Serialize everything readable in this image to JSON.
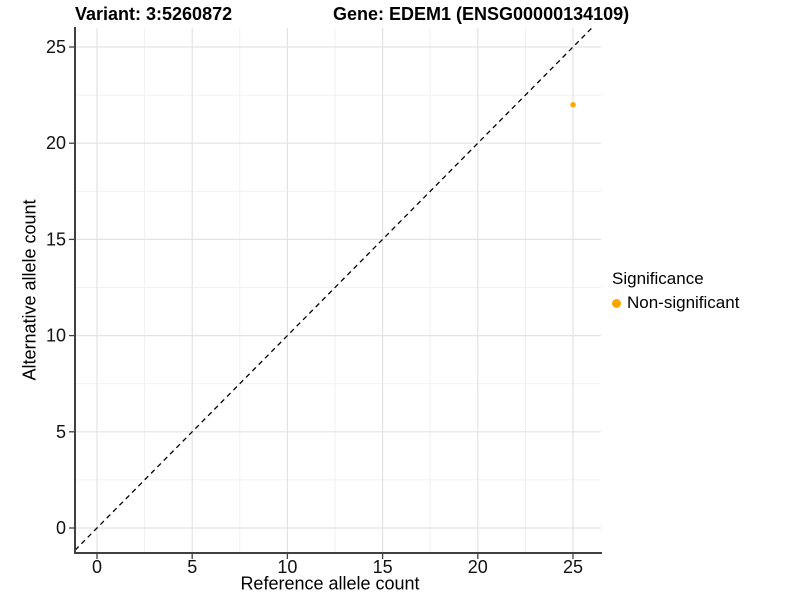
{
  "title": {
    "variant": "Variant: 3:5260872",
    "gene": "Gene: EDEM1 (ENSG00000134109)"
  },
  "axes": {
    "x": {
      "label": "Reference allele count",
      "ticks": [
        0,
        5,
        10,
        15,
        20,
        25
      ],
      "minor_ticks": [
        2.5,
        7.5,
        12.5,
        17.5,
        22.5
      ]
    },
    "y": {
      "label": "Alternative allele count",
      "ticks": [
        0,
        5,
        10,
        15,
        20,
        25
      ],
      "minor_ticks": [
        2.5,
        7.5,
        12.5,
        17.5,
        22.5
      ]
    }
  },
  "legend": {
    "title": "Significance",
    "items": [
      {
        "label": "Non-significant",
        "color": "#FFA500"
      }
    ]
  },
  "chart_data": {
    "type": "scatter",
    "title": "Variant: 3:5260872    Gene: EDEM1 (ENSG00000134109)",
    "xlabel": "Reference allele count",
    "ylabel": "Alternative allele count",
    "xlim": [
      -1.15,
      26.45
    ],
    "ylim": [
      -1.3,
      26.0
    ],
    "x_ticks": [
      0,
      5,
      10,
      15,
      20,
      25
    ],
    "y_ticks": [
      0,
      5,
      10,
      15,
      20,
      25
    ],
    "grid": true,
    "legend_position": "right",
    "series": [
      {
        "name": "Non-significant",
        "color": "#FFA500",
        "points": [
          {
            "x": 25,
            "y": 22
          }
        ]
      }
    ],
    "reference_line": {
      "type": "identity y=x",
      "style": "dashed",
      "color": "#000000",
      "from": -1.15,
      "to": 26.1
    }
  },
  "colors": {
    "point": "#FFA500",
    "grid_major": "#E3E3E3",
    "grid_minor": "#F1F1F1",
    "axis_line": "#404040",
    "tick_label": "#111111"
  }
}
